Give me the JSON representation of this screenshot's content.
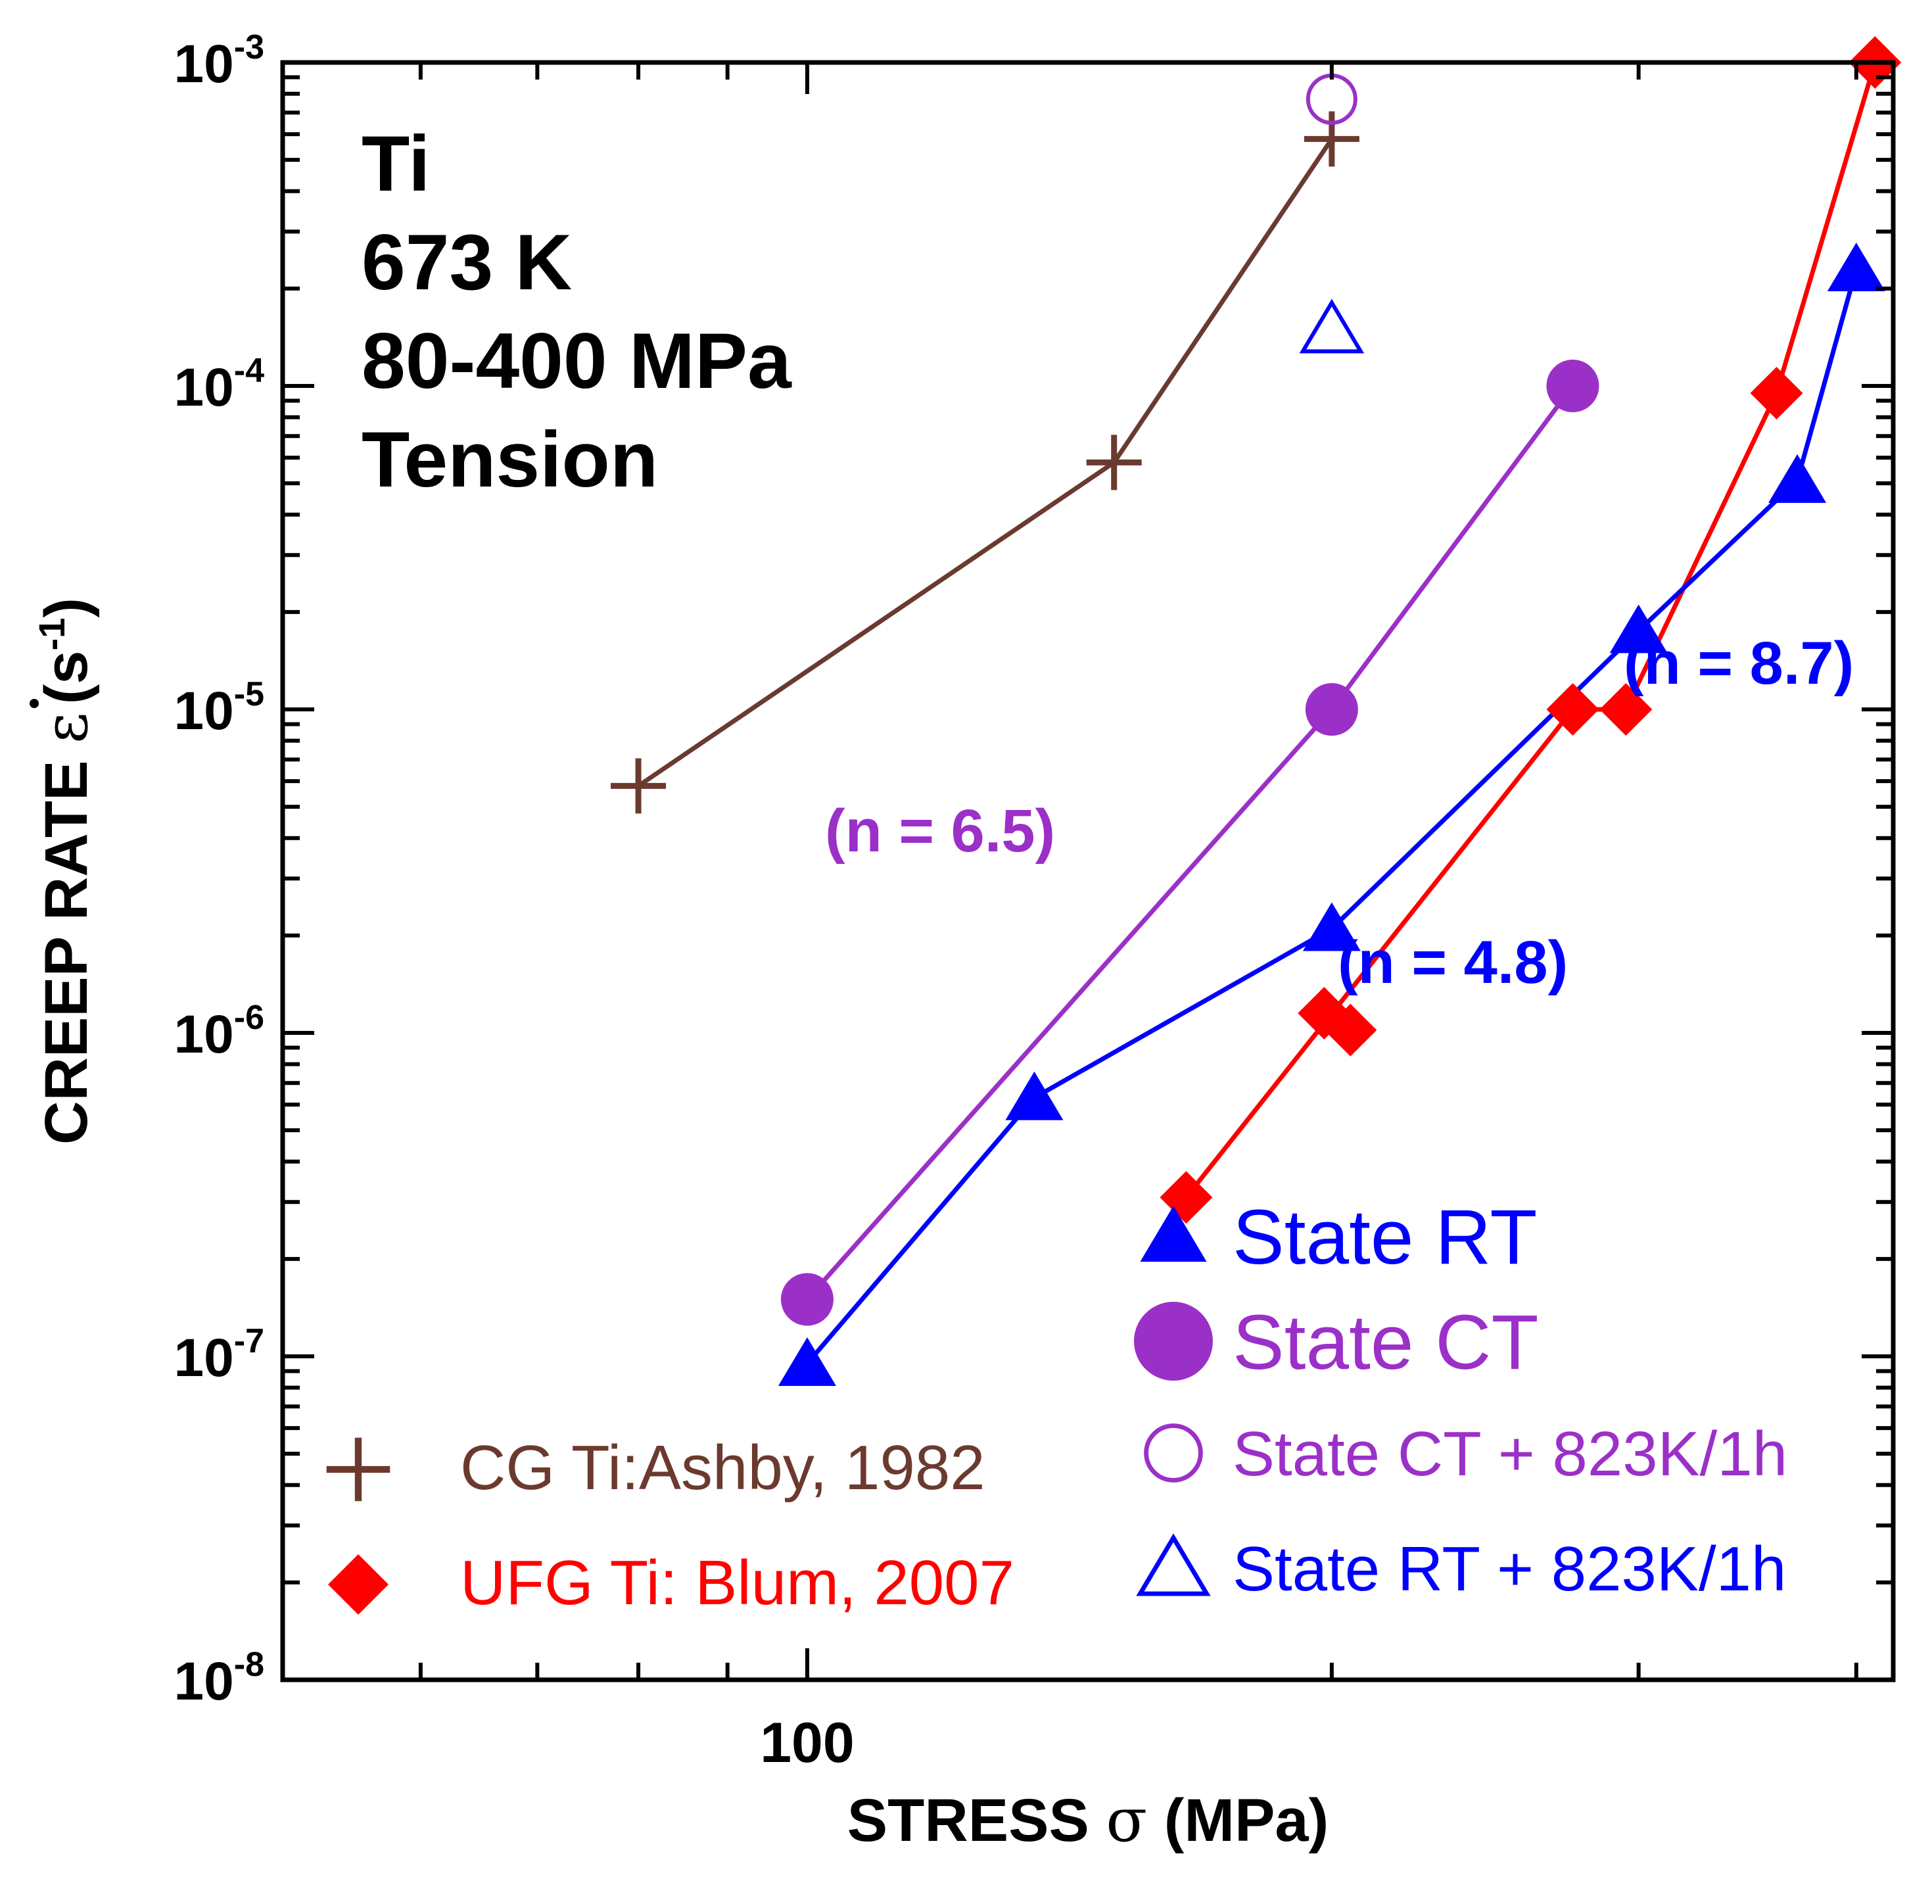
{
  "chart_data": {
    "type": "scatter",
    "title": "",
    "xlabel_main": "STRESS ",
    "xlabel_symbol": "σ",
    "xlabel_unit": " (MPa)",
    "ylabel_main": "CREEP RATE ",
    "ylabel_symbol": "ε",
    "ylabel_unit": "(s",
    "ylabel_unit_exp": "-1",
    "ylabel_unit_close": ")",
    "x_scale": "log",
    "y_scale": "log",
    "xlim": [
      50,
      420
    ],
    "ylim": [
      1e-08,
      0.001
    ],
    "x_tick_labels": [
      {
        "value": 100,
        "label": "100"
      }
    ],
    "y_tick_labels": [
      {
        "value": 0.001,
        "base": "10",
        "exp": "-3"
      },
      {
        "value": 0.0001,
        "base": "10",
        "exp": "-4"
      },
      {
        "value": 1e-05,
        "base": "10",
        "exp": "-5"
      },
      {
        "value": 1e-06,
        "base": "10",
        "exp": "-6"
      },
      {
        "value": 1e-07,
        "base": "10",
        "exp": "-7"
      },
      {
        "value": 1e-08,
        "base": "10",
        "exp": "-8"
      }
    ],
    "grid": false,
    "info_lines": [
      "Ti",
      "673 K",
      "80-400 MPa",
      "Tension"
    ],
    "series": [
      {
        "id": "cg",
        "name": "CG Ti:Ashby, 1982",
        "marker": "plus",
        "color": "#6b3a2e",
        "connected": true,
        "points": [
          [
            80,
            5.8e-06
          ],
          [
            150,
            5.8e-05
          ],
          [
            200,
            0.00058
          ]
        ]
      },
      {
        "id": "ufg",
        "name": "UFG Ti: Blum, 2007",
        "marker": "diamond",
        "color": "#ff0000",
        "connected": true,
        "points": [
          [
            165,
            3.1e-07
          ],
          [
            275,
            1e-05
          ],
          [
            295,
            1e-05
          ],
          [
            360,
            9.5e-05
          ],
          [
            410,
            0.001
          ]
        ]
      },
      {
        "id": "ufg-extra",
        "name": "",
        "marker": "diamond",
        "color": "#ff0000",
        "connected": false,
        "points": [
          [
            198,
            1.15e-06
          ],
          [
            205,
            1.02e-06
          ]
        ]
      },
      {
        "id": "rt",
        "name": "State RT",
        "marker": "triangle",
        "color": "#0000ff",
        "connected": true,
        "points": [
          [
            100,
            9.5e-08
          ],
          [
            135,
            6.3e-07
          ],
          [
            200,
            2.1e-06
          ],
          [
            300,
            1.75e-05
          ],
          [
            370,
            5.1e-05
          ],
          [
            400,
            0.00023
          ]
        ]
      },
      {
        "id": "ct",
        "name": "State CT",
        "marker": "circle",
        "color": "#9b30c8",
        "connected": true,
        "points": [
          [
            100,
            1.5e-07
          ],
          [
            200,
            1e-05
          ],
          [
            275,
            0.0001
          ]
        ]
      },
      {
        "id": "ct-anneal",
        "name": "State CT + 823K/1h",
        "marker": "circle-open",
        "color": "#9b30c8",
        "connected": false,
        "points": [
          [
            200,
            0.00077
          ]
        ]
      },
      {
        "id": "rt-anneal",
        "name": "State RT + 823K/1h",
        "marker": "triangle-open",
        "color": "#0000ff",
        "connected": false,
        "points": [
          [
            200,
            0.00015
          ]
        ]
      }
    ],
    "annotations": [
      {
        "text": "(n = 6.5)",
        "color": "#9b30c8"
      },
      {
        "text": "(n = 4.8)",
        "color": "#0000ff"
      },
      {
        "text": "(n = 8.7)",
        "color": "#0000ff"
      }
    ],
    "legend_left": [
      "cg",
      "ufg"
    ],
    "legend_right": [
      "rt",
      "ct",
      "ct-anneal",
      "rt-anneal"
    ]
  }
}
